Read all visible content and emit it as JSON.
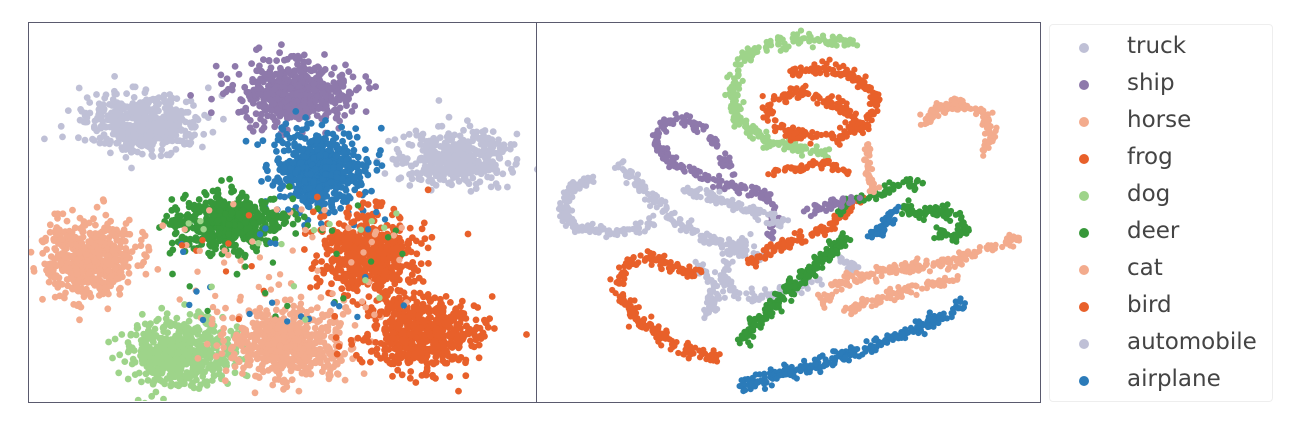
{
  "chart_data": [
    {
      "type": "scatter",
      "title": "",
      "xlabel": "",
      "ylabel": "",
      "axes_ticks": false,
      "grid": false,
      "series": [
        {
          "name": "truck",
          "color": "#bfc0d6",
          "clusters": [
            {
              "x": 0.19,
              "y": 0.72
            },
            {
              "x": 0.83,
              "y": 0.65
            }
          ]
        },
        {
          "name": "ship",
          "color": "#8e79ab",
          "clusters": [
            {
              "x": 0.51,
              "y": 0.86
            }
          ]
        },
        {
          "name": "horse",
          "color": "#f3ab8d",
          "clusters": [
            {
              "x": 0.48,
              "y": 0.13
            }
          ]
        },
        {
          "name": "frog",
          "color": "#e8602a",
          "clusters": [
            {
              "x": 0.82,
              "y": 0.15
            }
          ]
        },
        {
          "name": "dog",
          "color": "#9ed48a",
          "clusters": [
            {
              "x": 0.29,
              "y": 0.12
            }
          ]
        },
        {
          "name": "deer",
          "color": "#37983a",
          "clusters": [
            {
              "x": 0.41,
              "y": 0.47
            }
          ]
        },
        {
          "name": "cat",
          "color": "#f3ab8d",
          "clusters": [
            {
              "x": 0.11,
              "y": 0.38
            }
          ]
        },
        {
          "name": "bird",
          "color": "#e8602a",
          "clusters": [
            {
              "x": 0.69,
              "y": 0.36
            }
          ]
        },
        {
          "name": "automobile",
          "color": "#bfc0d6",
          "clusters": [
            {
              "x": 0.19,
              "y": 0.72
            }
          ]
        },
        {
          "name": "airplane",
          "color": "#2b7bb9",
          "clusters": [
            {
              "x": 0.51,
              "y": 0.61
            }
          ]
        }
      ]
    },
    {
      "type": "scatter",
      "title": "",
      "xlabel": "",
      "ylabel": "",
      "axes_ticks": false,
      "grid": false,
      "series": [
        {
          "name": "truck",
          "color": "#bfc0d6"
        },
        {
          "name": "ship",
          "color": "#8e79ab"
        },
        {
          "name": "horse",
          "color": "#f3ab8d"
        },
        {
          "name": "frog",
          "color": "#e8602a"
        },
        {
          "name": "dog",
          "color": "#9ed48a"
        },
        {
          "name": "deer",
          "color": "#37983a"
        },
        {
          "name": "cat",
          "color": "#f3ab8d"
        },
        {
          "name": "bird",
          "color": "#e8602a"
        },
        {
          "name": "automobile",
          "color": "#bfc0d6"
        },
        {
          "name": "airplane",
          "color": "#2b7bb9"
        }
      ]
    }
  ],
  "legend": {
    "placement": "right",
    "entries": [
      {
        "label": "truck",
        "color": "#bfc0d6"
      },
      {
        "label": "ship",
        "color": "#8e79ab"
      },
      {
        "label": "horse",
        "color": "#f3ab8d"
      },
      {
        "label": "frog",
        "color": "#e8602a"
      },
      {
        "label": "dog",
        "color": "#9ed48a"
      },
      {
        "label": "deer",
        "color": "#37983a"
      },
      {
        "label": "cat",
        "color": "#f3ab8d"
      },
      {
        "label": "bird",
        "color": "#e8602a"
      },
      {
        "label": "automobile",
        "color": "#bfc0d6"
      },
      {
        "label": "airplane",
        "color": "#2b7bb9"
      }
    ]
  }
}
